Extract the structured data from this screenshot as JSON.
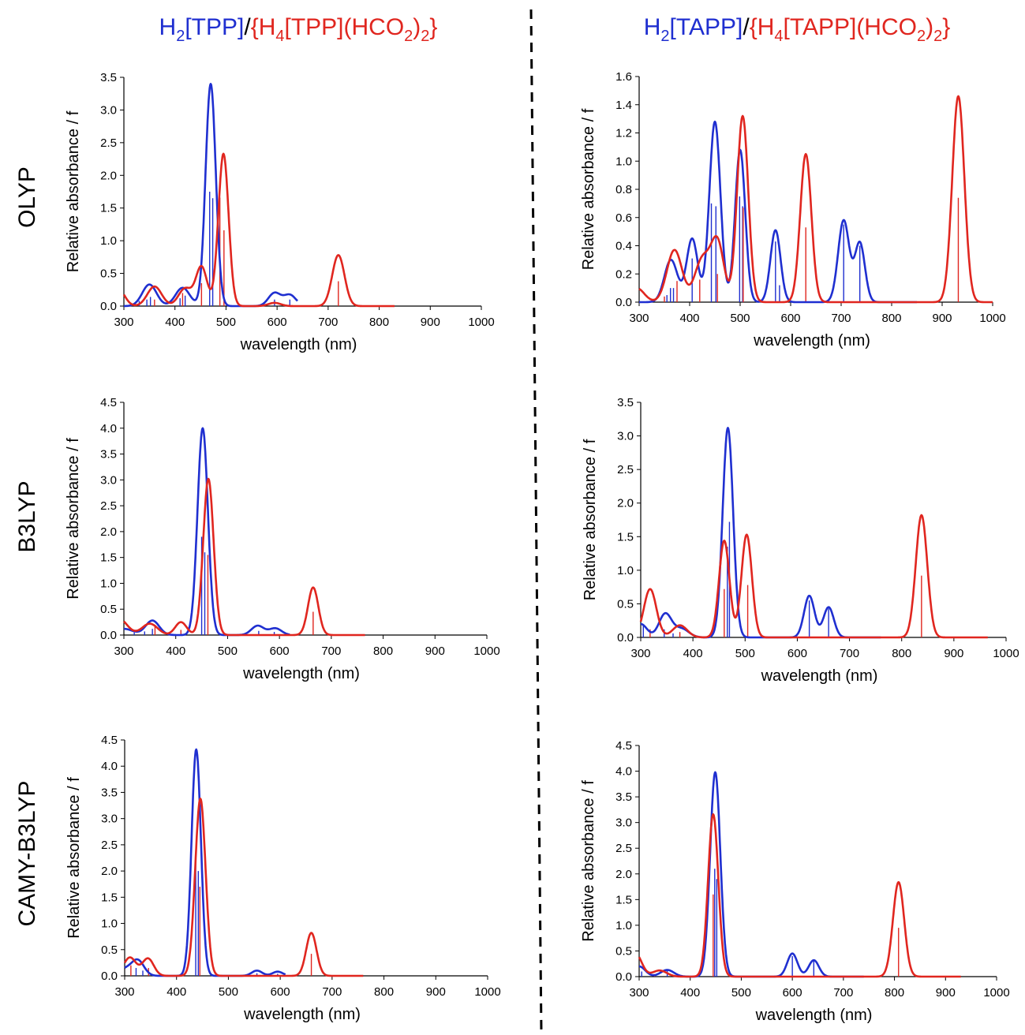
{
  "colors": {
    "blue": "#1f2fd0",
    "red": "#e0261f",
    "axis": "#000000"
  },
  "column_titles": {
    "left": {
      "blue_part": "H2[TPP]",
      "sep": "/",
      "red_part": "{H4[TPP](HCO2)2}"
    },
    "right": {
      "blue_part": "H2[TAPP]",
      "sep": "/",
      "red_part": "{H4[TAPP](HCO2)2}"
    }
  },
  "row_labels": [
    "OLYP",
    "B3LYP",
    "CAMY-B3LYP"
  ],
  "chart_data": [
    {
      "type": "line",
      "method": "OLYP",
      "compound_pair": "TPP",
      "xlabel": "wavelength (nm)",
      "ylabel": "Relative absorbance / f",
      "xlim": [
        300,
        1000
      ],
      "ylim": [
        0,
        3.5
      ],
      "xticks": [
        300,
        400,
        500,
        600,
        700,
        800,
        900,
        1000
      ],
      "yticks": [
        0.0,
        0.5,
        1.0,
        1.5,
        2.0,
        2.5,
        3.0,
        3.5
      ],
      "series": [
        {
          "color": "blue",
          "x_end": 640,
          "bands": [
            [
              350,
              0.33,
              14
            ],
            [
              415,
              0.28,
              14
            ],
            [
              470,
              3.4,
              10
            ],
            [
              595,
              0.2,
              12
            ],
            [
              625,
              0.17,
              12
            ]
          ],
          "sticks": [
            [
              330,
              0.08
            ],
            [
              345,
              0.1
            ],
            [
              352,
              0.14
            ],
            [
              410,
              0.12
            ],
            [
              420,
              0.16
            ],
            [
              468,
              1.75
            ],
            [
              474,
              1.65
            ],
            [
              595,
              0.1
            ],
            [
              625,
              0.1
            ]
          ]
        },
        {
          "color": "red",
          "x_end": 830,
          "bands": [
            [
              290,
              0.25,
              12
            ],
            [
              360,
              0.3,
              14
            ],
            [
              420,
              0.27,
              13
            ],
            [
              452,
              0.6,
              11
            ],
            [
              495,
              2.33,
              10
            ],
            [
              595,
              0.05,
              12
            ],
            [
              720,
              0.78,
              12
            ]
          ],
          "sticks": [
            [
              360,
              0.1
            ],
            [
              415,
              0.2
            ],
            [
              452,
              0.35
            ],
            [
              488,
              1.66
            ],
            [
              496,
              1.16
            ],
            [
              720,
              0.38
            ]
          ]
        }
      ]
    },
    {
      "type": "line",
      "method": "OLYP",
      "compound_pair": "TAPP",
      "xlabel": "wavelength (nm)",
      "ylabel": "Relative absorbance / f",
      "xlim": [
        300,
        1000
      ],
      "ylim": [
        0,
        1.6
      ],
      "xticks": [
        300,
        400,
        500,
        600,
        700,
        800,
        900,
        1000
      ],
      "yticks": [
        0.0,
        0.2,
        0.4,
        0.6,
        0.8,
        1.0,
        1.2,
        1.4,
        1.6
      ],
      "series": [
        {
          "color": "blue",
          "x_end": 850,
          "bands": [
            [
              363,
              0.3,
              13
            ],
            [
              405,
              0.45,
              11
            ],
            [
              450,
              1.28,
              11
            ],
            [
              500,
              1.08,
              10
            ],
            [
              570,
              0.51,
              10
            ],
            [
              705,
              0.58,
              11
            ],
            [
              737,
              0.42,
              10
            ]
          ],
          "sticks": [
            [
              355,
              0.05
            ],
            [
              362,
              0.1
            ],
            [
              368,
              0.1
            ],
            [
              405,
              0.31
            ],
            [
              443,
              0.7
            ],
            [
              452,
              0.68
            ],
            [
              499,
              0.75
            ],
            [
              505,
              0.68
            ],
            [
              570,
              0.43
            ],
            [
              578,
              0.12
            ],
            [
              705,
              0.55
            ],
            [
              737,
              0.4
            ]
          ]
        },
        {
          "color": "red",
          "x_end": 1000,
          "bands": [
            [
              295,
              0.1,
              15
            ],
            [
              370,
              0.37,
              15
            ],
            [
              425,
              0.3,
              15
            ],
            [
              455,
              0.42,
              13
            ],
            [
              505,
              1.32,
              11
            ],
            [
              630,
              1.05,
              11
            ],
            [
              932,
              1.46,
              12
            ]
          ],
          "sticks": [
            [
              350,
              0.04
            ],
            [
              375,
              0.15
            ],
            [
              420,
              0.16
            ],
            [
              455,
              0.2
            ],
            [
              506,
              0.67
            ],
            [
              630,
              0.53
            ],
            [
              932,
              0.74
            ]
          ]
        }
      ]
    },
    {
      "type": "line",
      "method": "B3LYP",
      "compound_pair": "TPP",
      "xlabel": "wavelength (nm)",
      "ylabel": "Relative absorbance / f",
      "xlim": [
        300,
        1000
      ],
      "ylim": [
        0,
        4.5
      ],
      "xticks": [
        300,
        400,
        500,
        600,
        700,
        800,
        900,
        1000
      ],
      "yticks": [
        0.0,
        0.5,
        1.0,
        1.5,
        2.0,
        2.5,
        3.0,
        3.5,
        4.0,
        4.5
      ],
      "series": [
        {
          "color": "blue",
          "x_end": 620,
          "bands": [
            [
              300,
              0.12,
              18
            ],
            [
              355,
              0.28,
              13
            ],
            [
              452,
              4.0,
              10
            ],
            [
              558,
              0.18,
              12
            ],
            [
              592,
              0.13,
              12
            ]
          ],
          "sticks": [
            [
              320,
              0.05
            ],
            [
              340,
              0.07
            ],
            [
              355,
              0.12
            ],
            [
              450,
              1.9
            ],
            [
              456,
              1.6
            ],
            [
              560,
              0.08
            ],
            [
              590,
              0.06
            ]
          ]
        },
        {
          "color": "red",
          "x_end": 765,
          "bands": [
            [
              290,
              0.32,
              16
            ],
            [
              350,
              0.22,
              15
            ],
            [
              410,
              0.25,
              11
            ],
            [
              463,
              3.02,
              10
            ],
            [
              665,
              0.92,
              10
            ]
          ],
          "sticks": [
            [
              360,
              0.2
            ],
            [
              410,
              0.1
            ],
            [
              462,
              1.55
            ],
            [
              665,
              0.45
            ]
          ]
        }
      ]
    },
    {
      "type": "line",
      "method": "B3LYP",
      "compound_pair": "TAPP",
      "xlabel": "wavelength (nm)",
      "ylabel": "Relative absorbance / f",
      "xlim": [
        300,
        1000
      ],
      "ylim": [
        0,
        3.5
      ],
      "xticks": [
        300,
        400,
        500,
        600,
        700,
        800,
        900,
        1000
      ],
      "yticks": [
        0.0,
        0.5,
        1.0,
        1.5,
        2.0,
        2.5,
        3.0,
        3.5
      ],
      "series": [
        {
          "color": "blue",
          "x_end": 760,
          "bands": [
            [
              300,
              0.2,
              12
            ],
            [
              347,
              0.35,
              12
            ],
            [
              378,
              0.13,
              14
            ],
            [
              467,
              3.12,
              10
            ],
            [
              623,
              0.62,
              10
            ],
            [
              660,
              0.45,
              10
            ]
          ],
          "sticks": [
            [
              305,
              0.18
            ],
            [
              345,
              0.12
            ],
            [
              362,
              0.06
            ],
            [
              466,
              1.35
            ],
            [
              470,
              1.72
            ],
            [
              623,
              0.55
            ],
            [
              660,
              0.43
            ]
          ]
        },
        {
          "color": "red",
          "x_end": 965,
          "bands": [
            [
              318,
              0.72,
              12
            ],
            [
              375,
              0.18,
              14
            ],
            [
              460,
              1.44,
              10
            ],
            [
              503,
              1.53,
              10
            ],
            [
              838,
              1.82,
              11
            ]
          ],
          "sticks": [
            [
              318,
              0.12
            ],
            [
              375,
              0.08
            ],
            [
              460,
              0.72
            ],
            [
              505,
              0.78
            ],
            [
              838,
              0.92
            ]
          ]
        }
      ]
    },
    {
      "type": "line",
      "method": "CAMY-B3LYP",
      "compound_pair": "TPP",
      "xlabel": "wavelength (nm)",
      "ylabel": "Relative absorbance / f",
      "xlim": [
        300,
        1000
      ],
      "ylim": [
        0,
        4.5
      ],
      "xticks": [
        300,
        400,
        500,
        600,
        700,
        800,
        900,
        1000
      ],
      "yticks": [
        0.0,
        0.5,
        1.0,
        1.5,
        2.0,
        2.5,
        3.0,
        3.5,
        4.0,
        4.5
      ],
      "series": [
        {
          "color": "blue",
          "x_end": 610,
          "bands": [
            [
              300,
              0.12,
              12
            ],
            [
              325,
              0.3,
              12
            ],
            [
              438,
              4.32,
              9
            ],
            [
              555,
              0.1,
              10
            ],
            [
              595,
              0.08,
              10
            ]
          ],
          "sticks": [
            [
              322,
              0.15
            ],
            [
              335,
              0.1
            ],
            [
              437,
              2.18
            ],
            [
              442,
              2.0
            ],
            [
              555,
              0.05
            ],
            [
              595,
              0.04
            ]
          ]
        },
        {
          "color": "red",
          "x_end": 760,
          "bands": [
            [
              310,
              0.35,
              12
            ],
            [
              345,
              0.33,
              11
            ],
            [
              446,
              3.38,
              10
            ],
            [
              660,
              0.82,
              10
            ]
          ],
          "sticks": [
            [
              312,
              0.2
            ],
            [
              346,
              0.15
            ],
            [
              445,
              1.7
            ],
            [
              660,
              0.42
            ]
          ]
        }
      ]
    },
    {
      "type": "line",
      "method": "CAMY-B3LYP",
      "compound_pair": "TAPP",
      "xlabel": "wavelength (nm)",
      "ylabel": "Relative absorbance / f",
      "xlim": [
        300,
        1000
      ],
      "ylim": [
        0,
        4.5
      ],
      "xticks": [
        300,
        400,
        500,
        600,
        700,
        800,
        900,
        1000
      ],
      "yticks": [
        0.0,
        0.5,
        1.0,
        1.5,
        2.0,
        2.5,
        3.0,
        3.5,
        4.0,
        4.5
      ],
      "series": [
        {
          "color": "blue",
          "x_end": 740,
          "bands": [
            [
              300,
              0.2,
              12
            ],
            [
              355,
              0.13,
              13
            ],
            [
              449,
              3.98,
              10
            ],
            [
              600,
              0.45,
              10
            ],
            [
              642,
              0.32,
              10
            ]
          ],
          "sticks": [
            [
              305,
              0.1
            ],
            [
              355,
              0.12
            ],
            [
              448,
              2.1
            ],
            [
              452,
              1.9
            ],
            [
              600,
              0.4
            ],
            [
              642,
              0.3
            ]
          ]
        },
        {
          "color": "red",
          "x_end": 930,
          "bands": [
            [
              293,
              0.45,
              12
            ],
            [
              340,
              0.12,
              14
            ],
            [
              445,
              3.16,
              10
            ],
            [
              808,
              1.84,
              11
            ]
          ],
          "sticks": [
            [
              330,
              0.05
            ],
            [
              445,
              1.6
            ],
            [
              808,
              0.95
            ]
          ]
        }
      ]
    }
  ]
}
